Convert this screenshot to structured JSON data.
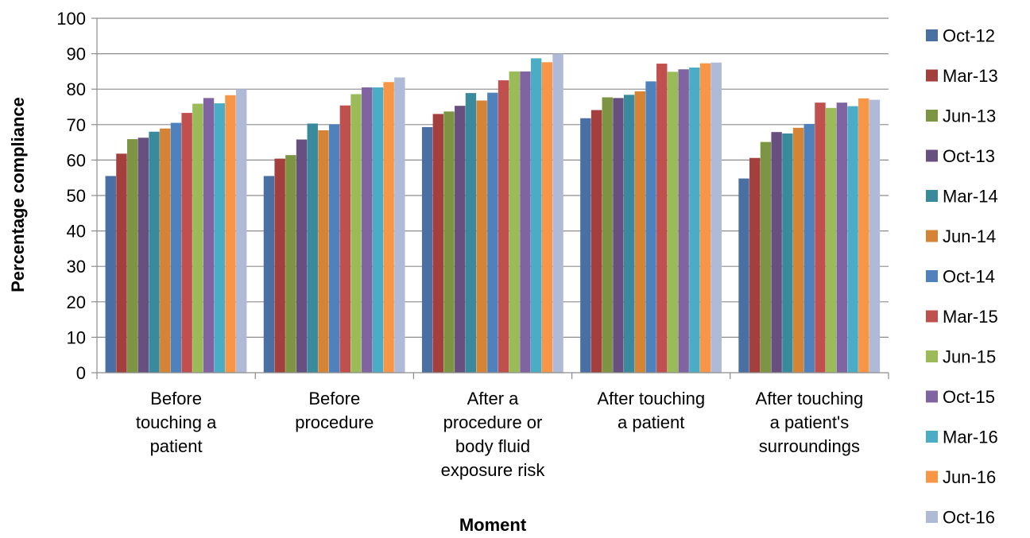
{
  "chart_data": {
    "type": "bar",
    "title": "",
    "xlabel": "Moment",
    "ylabel": "Percentage compliance",
    "ylim": [
      0,
      100
    ],
    "yticks": [
      0,
      10,
      20,
      30,
      40,
      50,
      60,
      70,
      80,
      90,
      100
    ],
    "grid": true,
    "legend_position": "right",
    "categories": [
      [
        "Before",
        "touching a",
        "patient"
      ],
      [
        "Before",
        "procedure"
      ],
      [
        "After a",
        "procedure or",
        "body fluid",
        "exposure risk"
      ],
      [
        "After touching",
        "a patient"
      ],
      [
        "After touching",
        "a patient's",
        "surroundings"
      ]
    ],
    "series": [
      {
        "name": "Oct-12",
        "color": "#4a6fa3",
        "values": [
          55.5,
          55.5,
          69.3,
          71.8,
          54.8
        ]
      },
      {
        "name": "Mar-13",
        "color": "#a33f3c",
        "values": [
          61.8,
          60.4,
          73.0,
          74.1,
          60.6
        ]
      },
      {
        "name": "Jun-13",
        "color": "#7d9543",
        "values": [
          65.9,
          61.4,
          73.7,
          77.7,
          65.1
        ]
      },
      {
        "name": "Oct-13",
        "color": "#67507f",
        "values": [
          66.3,
          65.8,
          75.3,
          77.5,
          67.9
        ]
      },
      {
        "name": "Mar-14",
        "color": "#3a8a9e",
        "values": [
          68.0,
          70.3,
          78.9,
          78.4,
          67.5
        ]
      },
      {
        "name": "Jun-14",
        "color": "#d58436",
        "values": [
          68.9,
          68.4,
          76.8,
          79.4,
          69.1
        ]
      },
      {
        "name": "Oct-14",
        "color": "#4f81bd",
        "values": [
          70.5,
          70.1,
          79.0,
          82.2,
          70.2
        ]
      },
      {
        "name": "Mar-15",
        "color": "#c0504d",
        "values": [
          73.3,
          75.4,
          82.5,
          87.2,
          76.2
        ]
      },
      {
        "name": "Jun-15",
        "color": "#9bbb59",
        "values": [
          75.9,
          78.6,
          85.0,
          84.9,
          74.7
        ]
      },
      {
        "name": "Oct-15",
        "color": "#8064a2",
        "values": [
          77.5,
          80.5,
          85.0,
          85.6,
          76.2
        ]
      },
      {
        "name": "Mar-16",
        "color": "#4bacc6",
        "values": [
          76.0,
          80.5,
          88.7,
          86.1,
          75.2
        ]
      },
      {
        "name": "Jun-16",
        "color": "#f79646",
        "values": [
          78.3,
          82.0,
          87.6,
          87.3,
          77.4
        ]
      },
      {
        "name": "Oct-16",
        "color": "#aebad6",
        "values": [
          80.0,
          83.3,
          90.0,
          87.5,
          77.0
        ]
      }
    ]
  }
}
